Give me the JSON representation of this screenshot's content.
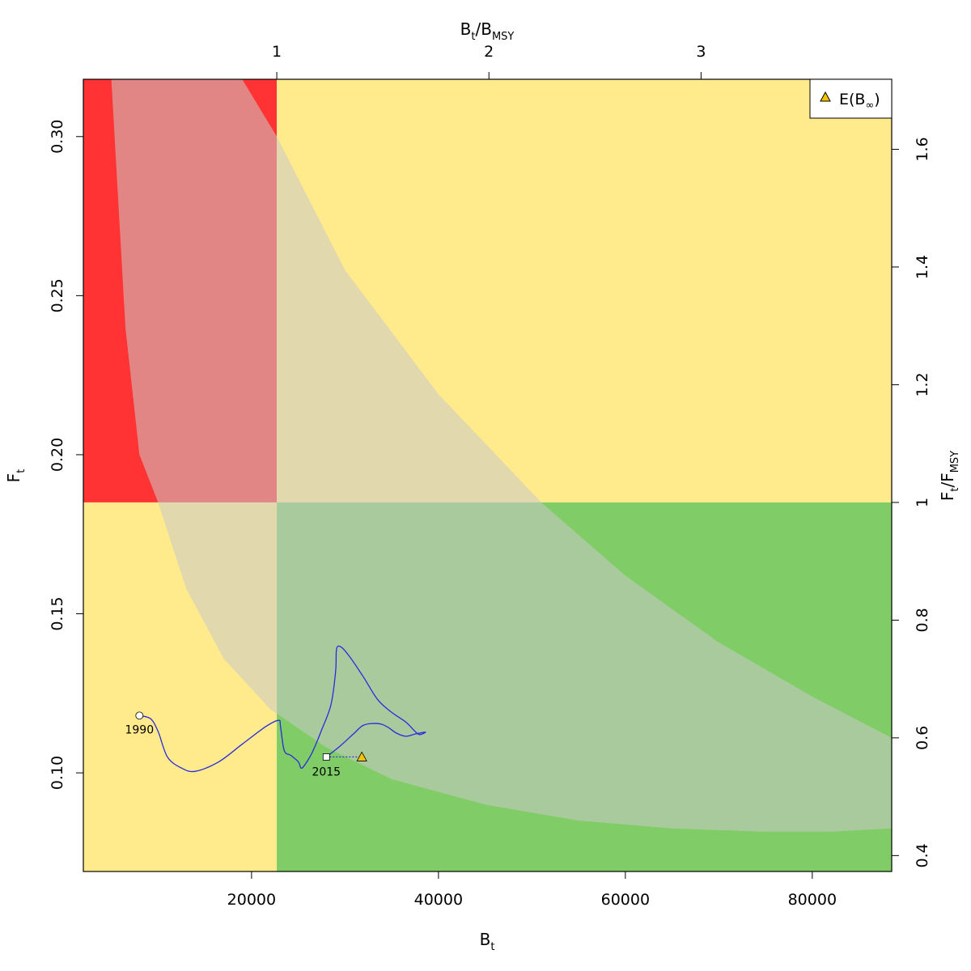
{
  "chart_data": {
    "type": "line",
    "title": "",
    "xlabel": "B",
    "xlabel_sub": "t",
    "ylabel": "F",
    "ylabel_sub": "t",
    "x2label_main": "B",
    "x2label_sub": "t",
    "x2label_sep": "/B",
    "x2label_sub2": "MSY",
    "y2label_main": "F",
    "y2label_sub": "t",
    "y2label_sep": "/F",
    "y2label_sub2": "MSY",
    "xlim": [
      2000,
      88500
    ],
    "ylim": [
      0.069,
      0.318
    ],
    "x_ticks": [
      20000,
      40000,
      60000,
      80000
    ],
    "x_tick_labels": [
      "20000",
      "40000",
      "60000",
      "80000"
    ],
    "y_ticks": [
      0.1,
      0.15,
      0.2,
      0.25,
      0.3
    ],
    "y_tick_labels": [
      "0.10",
      "0.15",
      "0.20",
      "0.25",
      "0.30"
    ],
    "bmsy": 22700,
    "fmsy": 0.185,
    "top_ticks": [
      1,
      2,
      3
    ],
    "top_tick_labels": [
      "1",
      "2",
      "3"
    ],
    "right_ticks": [
      0.4,
      0.6,
      0.8,
      1.0,
      1.2,
      1.4,
      1.6
    ],
    "right_tick_labels": [
      "0.4",
      "0.6",
      "0.8",
      "1",
      "1.2",
      "1.4",
      "1.6"
    ],
    "zone_colors": {
      "red": "#ff3333",
      "yellow": "#ffeb8c",
      "green": "#80cc66",
      "uncertainty": "#c8c8c8"
    },
    "trajectory_color": "#2a2ae0",
    "uncertainty_upper": [
      [
        5000,
        0.318
      ],
      [
        6500,
        0.24
      ],
      [
        8000,
        0.2
      ],
      [
        10000,
        0.185
      ],
      [
        13000,
        0.158
      ],
      [
        17000,
        0.136
      ],
      [
        22000,
        0.12
      ],
      [
        28000,
        0.108
      ],
      [
        35000,
        0.098
      ],
      [
        45000,
        0.09
      ],
      [
        55000,
        0.085
      ],
      [
        65000,
        0.0825
      ],
      [
        75000,
        0.0815
      ],
      [
        82000,
        0.0815
      ],
      [
        88500,
        0.0825
      ]
    ],
    "uncertainty_lower": [
      [
        19000,
        0.318
      ],
      [
        22700,
        0.3
      ],
      [
        30000,
        0.258
      ],
      [
        40000,
        0.219
      ],
      [
        51000,
        0.185
      ],
      [
        60000,
        0.162
      ],
      [
        70000,
        0.141
      ],
      [
        80000,
        0.124
      ],
      [
        88500,
        0.111
      ]
    ],
    "trajectory": [
      [
        8000,
        0.118
      ],
      [
        9200,
        0.117
      ],
      [
        10000,
        0.113
      ],
      [
        11000,
        0.105
      ],
      [
        12500,
        0.1015
      ],
      [
        14000,
        0.1005
      ],
      [
        16500,
        0.1035
      ],
      [
        19000,
        0.109
      ],
      [
        21500,
        0.1145
      ],
      [
        22900,
        0.1165
      ],
      [
        23100,
        0.1145
      ],
      [
        23500,
        0.107
      ],
      [
        24200,
        0.1055
      ],
      [
        25000,
        0.1035
      ],
      [
        25300,
        0.1015
      ],
      [
        25700,
        0.1025
      ],
      [
        26500,
        0.1065
      ],
      [
        27500,
        0.1135
      ],
      [
        28500,
        0.1215
      ],
      [
        29000,
        0.132
      ],
      [
        29100,
        0.139
      ],
      [
        29600,
        0.1395
      ],
      [
        30500,
        0.1365
      ],
      [
        32000,
        0.13
      ],
      [
        33500,
        0.123
      ],
      [
        35000,
        0.119
      ],
      [
        36500,
        0.116
      ],
      [
        37500,
        0.113
      ],
      [
        38000,
        0.112
      ],
      [
        38600,
        0.1128
      ],
      [
        37500,
        0.1122
      ],
      [
        36500,
        0.1115
      ],
      [
        35500,
        0.1125
      ],
      [
        34500,
        0.1145
      ],
      [
        33500,
        0.1155
      ],
      [
        32000,
        0.115
      ],
      [
        31000,
        0.1125
      ],
      [
        29500,
        0.1085
      ],
      [
        28000,
        0.105
      ]
    ],
    "start_point": {
      "x": 8000,
      "y": 0.118,
      "label": "1990"
    },
    "end_point": {
      "x": 28000,
      "y": 0.105,
      "label": "2015"
    },
    "equilibrium": {
      "x": 31800,
      "y": 0.105
    },
    "legend": {
      "position": "top-right",
      "symbol": "triangle",
      "symbol_color": "#f2c400",
      "label_main": "E(B",
      "label_sub": "∞",
      "label_close": ")"
    }
  }
}
